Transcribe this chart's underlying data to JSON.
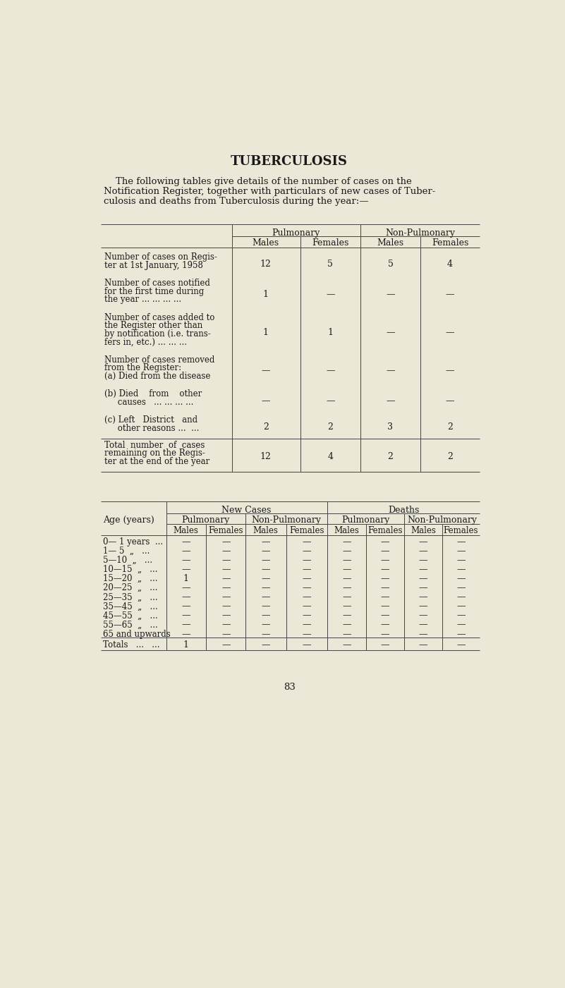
{
  "title": "TUBERCULOSIS",
  "intro_lines": [
    "    The following tables give details of the number of cases on the",
    "Notification Register, together with particulars of new cases of Tuber-",
    "culosis and deaths from Tuberculosis during the year:—"
  ],
  "t1_col_groups": [
    "Pulmonary",
    "Non-Pulmonary"
  ],
  "t1_col_headers": [
    "Males",
    "Females",
    "Males",
    "Females"
  ],
  "t1_rows": [
    {
      "label_lines": [
        "Number of cases on Regis-",
        "ter at 1st January, 1958"
      ],
      "values": [
        "12",
        "5",
        "5",
        "4"
      ]
    },
    {
      "label_lines": [
        "Number of cases notified",
        "for the first time during",
        "the year ... ... ... ..."
      ],
      "values": [
        "1",
        "—",
        "—",
        "—"
      ]
    },
    {
      "label_lines": [
        "Number of cases added to",
        "the Register other than",
        "by notification (i.e. trans-",
        "fers in, etc.) ... ... ..."
      ],
      "values": [
        "1",
        "1",
        "—",
        "—"
      ]
    },
    {
      "label_lines": [
        "Number of cases removed",
        "from the Register:",
        "(a) Died from the disease"
      ],
      "values": [
        "—",
        "—",
        "—",
        "—"
      ]
    },
    {
      "label_lines": [
        "(b) Died    from    other",
        "     causes   ... ... ... ..."
      ],
      "values": [
        "—",
        "—",
        "—",
        "—"
      ]
    },
    {
      "label_lines": [
        "(c) Left   District   and",
        "     other reasons ...  ..."
      ],
      "values": [
        "2",
        "2",
        "3",
        "2"
      ]
    }
  ],
  "t1_total_label": [
    "Total  number  of  cases",
    "remaining on the Regis-",
    "ter at the end of the year"
  ],
  "t1_total_values": [
    "12",
    "4",
    "2",
    "2"
  ],
  "t2_group_headers": [
    "New Cases",
    "Deaths"
  ],
  "t2_sub_groups": [
    "Pulmonary",
    "Non-Pulmonary",
    "Pulmonary",
    "Non-Pulmonary"
  ],
  "t2_col_headers": [
    "Males",
    "Females",
    "Males",
    "Females",
    "Males",
    "Females",
    "Males",
    "Females"
  ],
  "t2_age_label": "Age (years)",
  "t2_rows": [
    {
      "age": "0— 1 years  ...",
      "v": [
        "—",
        "—",
        "—",
        "—",
        "—",
        "—",
        "—",
        "—"
      ]
    },
    {
      "age": "1— 5  „   ...",
      "v": [
        "—",
        "—",
        "—",
        "—",
        "—",
        "—",
        "—",
        "—"
      ]
    },
    {
      "age": "5—10  „   ...",
      "v": [
        "—",
        "—",
        "—",
        "—",
        "—",
        "—",
        "—",
        "—"
      ]
    },
    {
      "age": "10—15  „   ...",
      "v": [
        "—",
        "—",
        "—",
        "—",
        "—",
        "—",
        "—",
        "—"
      ]
    },
    {
      "age": "15—20  „   ...",
      "v": [
        "1",
        "—",
        "—",
        "—",
        "—",
        "—",
        "—",
        "—"
      ]
    },
    {
      "age": "20—25  „   ...",
      "v": [
        "—",
        "—",
        "—",
        "—",
        "—",
        "—",
        "—",
        "—"
      ]
    },
    {
      "age": "25—35  „   ...",
      "v": [
        "—",
        "—",
        "—",
        "—",
        "—",
        "—",
        "—",
        "—"
      ]
    },
    {
      "age": "35—45  „   ...",
      "v": [
        "—",
        "—",
        "—",
        "—",
        "—",
        "—",
        "—",
        "—"
      ]
    },
    {
      "age": "45—55  „   ...",
      "v": [
        "—",
        "—",
        "—",
        "—",
        "—",
        "—",
        "—",
        "—"
      ]
    },
    {
      "age": "55—65  „   ...",
      "v": [
        "—",
        "—",
        "—",
        "—",
        "—",
        "—",
        "—",
        "—"
      ]
    },
    {
      "age": "65 and upwards",
      "v": [
        "—",
        "—",
        "—",
        "—",
        "—",
        "—",
        "—",
        "—"
      ]
    }
  ],
  "t2_totals_label": "Totals   ...   ...",
  "t2_totals_values": [
    "1",
    "—",
    "—",
    "—",
    "—",
    "—",
    "—",
    "—"
  ],
  "page_number": "83",
  "bg_color": "#ece8d8"
}
